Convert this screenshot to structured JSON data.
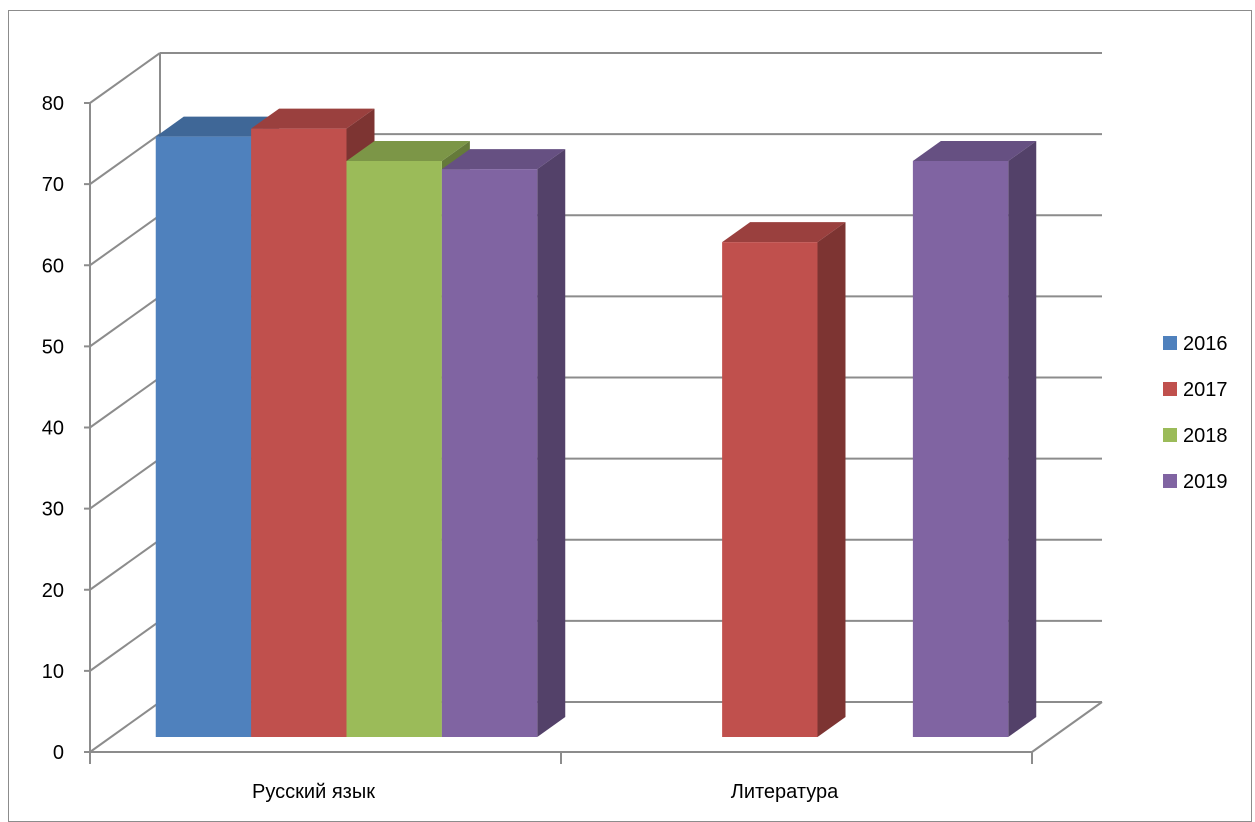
{
  "chart_data": {
    "type": "bar",
    "style": "3d-clustered-column",
    "categories": [
      "Русский язык",
      "Литература"
    ],
    "series": [
      {
        "name": "2016",
        "values": [
          74,
          null
        ],
        "color": "#4f81bd"
      },
      {
        "name": "2017",
        "values": [
          75,
          61
        ],
        "color": "#c0504d"
      },
      {
        "name": "2018",
        "values": [
          71,
          null
        ],
        "color": "#9bbb59"
      },
      {
        "name": "2019",
        "values": [
          70,
          71
        ],
        "color": "#8064a2"
      }
    ],
    "ylim": [
      0,
      80
    ],
    "y_ticks": [
      0,
      10,
      20,
      30,
      40,
      50,
      60,
      70,
      80
    ],
    "grid": true,
    "legend": "right",
    "title": "",
    "xlabel": "",
    "ylabel": ""
  }
}
